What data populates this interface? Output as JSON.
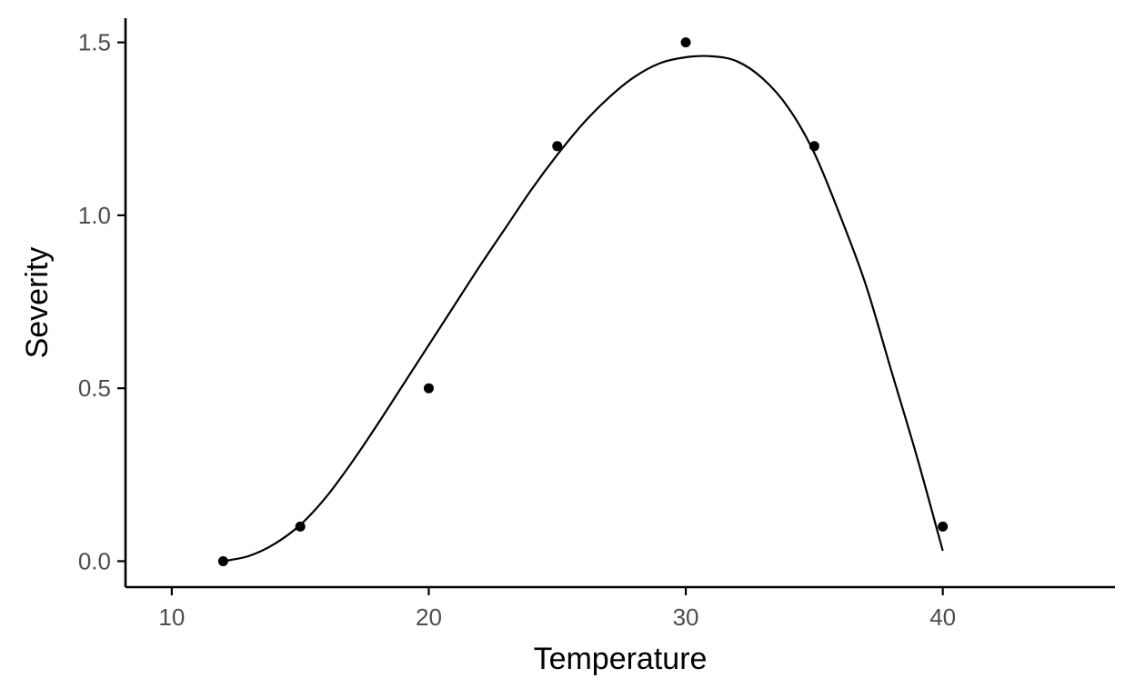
{
  "chart_data": {
    "type": "scatter",
    "xlabel": "Temperature",
    "ylabel": "Severity",
    "xlim": [
      8.2,
      46.7
    ],
    "ylim": [
      -0.075,
      1.57
    ],
    "x_ticks": [
      10,
      20,
      30,
      40
    ],
    "x_tick_labels": [
      "10",
      "20",
      "30",
      "40"
    ],
    "y_ticks": [
      0.0,
      0.5,
      1.0,
      1.5
    ],
    "y_tick_labels": [
      "0.0",
      "0.5",
      "1.0",
      "1.5"
    ],
    "grid": false,
    "legend": "none",
    "points": {
      "x": [
        12,
        15,
        20,
        25,
        30,
        35,
        40
      ],
      "y": [
        0.0,
        0.1,
        0.5,
        1.2,
        1.5,
        1.2,
        0.1
      ]
    },
    "fit_curve": {
      "x": [
        12,
        13,
        14,
        15,
        16,
        17,
        18,
        19,
        20,
        21,
        22,
        23,
        24,
        25,
        26,
        27,
        28,
        29,
        30,
        31,
        32,
        33,
        34,
        35,
        36,
        37,
        38,
        39,
        40
      ],
      "y": [
        0.0,
        0.015,
        0.05,
        0.105,
        0.185,
        0.285,
        0.395,
        0.51,
        0.625,
        0.74,
        0.855,
        0.965,
        1.075,
        1.175,
        1.265,
        1.34,
        1.4,
        1.44,
        1.457,
        1.46,
        1.445,
        1.395,
        1.31,
        1.18,
        1.0,
        0.8,
        0.55,
        0.3,
        0.03
      ]
    }
  }
}
